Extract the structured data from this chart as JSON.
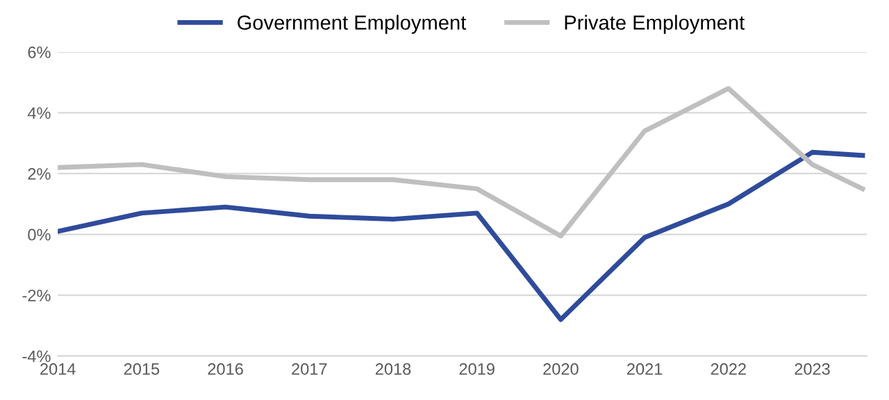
{
  "chart_data": {
    "type": "line",
    "x": [
      2014,
      2015,
      2016,
      2017,
      2018,
      2019,
      2020,
      2021,
      2022,
      2023,
      2023.6
    ],
    "series": [
      {
        "name": "Government Employment",
        "color": "#2f4b9b",
        "values": [
          0.1,
          0.7,
          0.9,
          0.6,
          0.5,
          0.7,
          -2.8,
          -0.1,
          1.0,
          2.7,
          2.6
        ]
      },
      {
        "name": "Private Employment",
        "color": "#bfbfbf",
        "values": [
          2.2,
          2.3,
          1.9,
          1.8,
          1.8,
          1.5,
          -0.05,
          3.4,
          4.8,
          2.3,
          1.5
        ]
      }
    ],
    "xlim": [
      2014,
      2023.65
    ],
    "xticks": [
      2014,
      2015,
      2016,
      2017,
      2018,
      2019,
      2020,
      2021,
      2022,
      2023
    ],
    "ylim": [
      -4,
      6
    ],
    "yticks": [
      {
        "value": -4,
        "label": "-4%"
      },
      {
        "value": -2,
        "label": "-2%"
      },
      {
        "value": 0,
        "label": "0%"
      },
      {
        "value": 2,
        "label": "2%"
      },
      {
        "value": 4,
        "label": "4%"
      },
      {
        "value": 6,
        "label": "6%"
      }
    ],
    "grid": "y",
    "legend": "top",
    "marker": "none",
    "line_style": "solid"
  }
}
